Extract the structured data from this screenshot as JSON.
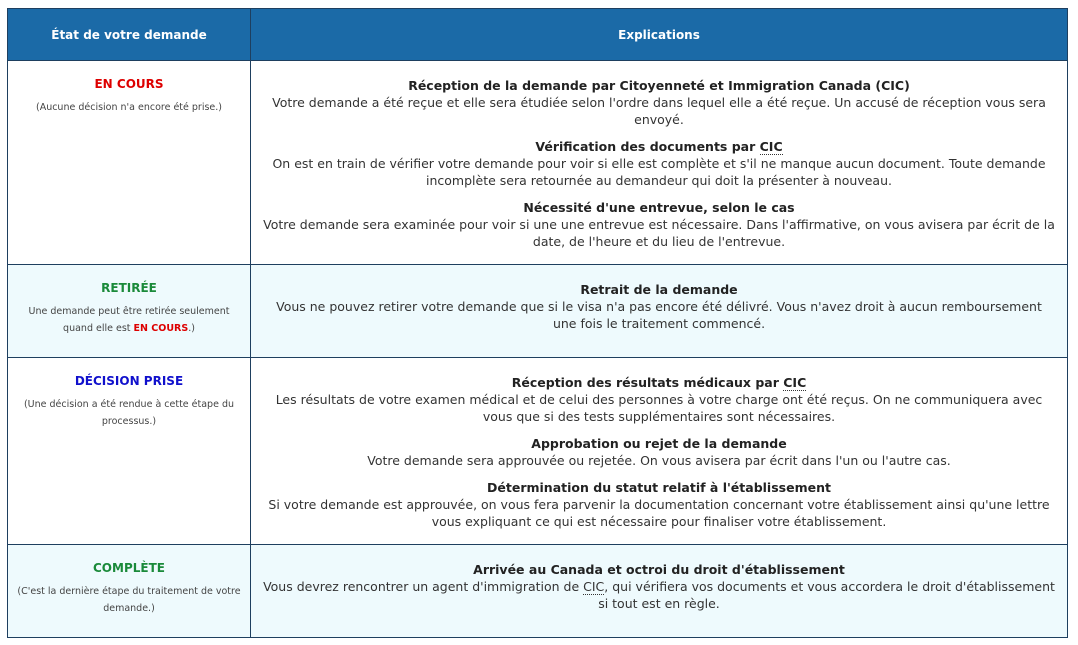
{
  "headers": {
    "state": "État de votre demande",
    "explanations": "Explications"
  },
  "colors": {
    "header_bg": "#1b6aa7",
    "en_cours": "#dd0000",
    "retiree": "#1a8a3a",
    "decision": "#1010cc",
    "complete": "#1a8a3a",
    "alt_row": "#eefafd"
  },
  "rows": [
    {
      "state": "EN COURS",
      "note": "(Aucune décision n'a encore été prise.)",
      "sections": [
        {
          "title": "Réception de la demande par Citoyenneté et Immigration Canada (CIC)",
          "text": "Votre demande a été reçue et elle sera étudiée selon l'ordre dans lequel elle a été reçue. Un accusé de réception vous sera envoyé."
        },
        {
          "title_pre": "Vérification des documents par ",
          "abbr": "CIC",
          "text": "On est en train de vérifier votre demande pour voir si elle est complète et s'il ne manque aucun document. Toute demande incomplète sera retournée au demandeur qui doit la présenter à nouveau."
        },
        {
          "title": "Nécessité d'une entrevue, selon le cas",
          "text": "Votre demande sera examinée pour voir si une une entrevue est nécessaire. Dans l'affirmative, on vous avisera par écrit de la date, de l'heure et du lieu de l'entrevue."
        }
      ]
    },
    {
      "state": "RETIRÉE",
      "note_pre": "Une demande peut être retirée seulement quand elle est ",
      "note_em": "EN COURS",
      "note_post": ".)",
      "sections": [
        {
          "title": "Retrait de la demande",
          "text": "Vous ne pouvez retirer votre demande que si le visa n'a pas encore été délivré. Vous n'avez droit à aucun remboursement une fois le traitement commencé."
        }
      ]
    },
    {
      "state": "DÉCISION PRISE",
      "note": "(Une décision a été rendue à cette étape du processus.)",
      "sections": [
        {
          "title_pre": "Réception des résultats médicaux par ",
          "abbr": "CIC",
          "text": "Les résultats de votre examen médical et de celui des personnes à votre charge ont été reçus. On ne communiquera avec vous que si des tests supplémentaires sont nécessaires."
        },
        {
          "title": "Approbation ou rejet de la demande",
          "text": "Votre demande sera approuvée ou rejetée. On vous avisera par écrit dans l'un ou l'autre cas."
        },
        {
          "title": "Détermination du statut relatif à l'établissement",
          "text": "Si votre demande est approuvée, on vous fera parvenir la documentation concernant votre établissement ainsi qu'une lettre vous expliquant ce qui est nécessaire pour finaliser votre établissement."
        }
      ]
    },
    {
      "state": "COMPLÈTE",
      "note": "(C'est la dernière étape du traitement de votre demande.)",
      "sections": [
        {
          "title": "Arrivée au Canada et octroi du droit d'établissement",
          "text_pre": "Vous devrez rencontrer un agent d'immigration de ",
          "abbr": "CIC",
          "text_post": ", qui vérifiera vos documents et vous accordera le droit d'établissement si tout est en règle."
        }
      ]
    }
  ]
}
